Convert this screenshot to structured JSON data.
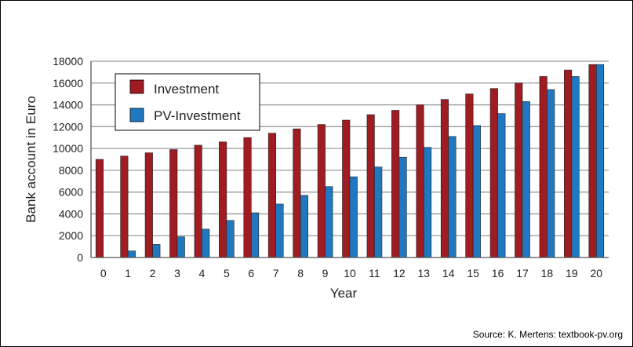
{
  "colors": {
    "investment": "#9e1c22",
    "pv_investment": "#1f78c0",
    "grid": "#9a9a9a",
    "axis": "#555555"
  },
  "source_note": "Source: K. Mertens: textbook-pv.org",
  "chart_data": {
    "type": "bar",
    "xlabel": "Year",
    "ylabel": "Bank account in Euro",
    "ylim": [
      0,
      18000
    ],
    "yticks": [
      0,
      2000,
      4000,
      6000,
      8000,
      10000,
      12000,
      14000,
      16000,
      18000
    ],
    "grid": true,
    "legend_position": "top-left",
    "categories": [
      "0",
      "1",
      "2",
      "3",
      "4",
      "5",
      "6",
      "7",
      "8",
      "9",
      "10",
      "11",
      "12",
      "13",
      "14",
      "15",
      "16",
      "17",
      "18",
      "19",
      "20"
    ],
    "series": [
      {
        "name": "Investment",
        "values": [
          9000,
          9300,
          9600,
          9900,
          10300,
          10600,
          11000,
          11400,
          11800,
          12200,
          12600,
          13100,
          13500,
          14000,
          14500,
          15000,
          15500,
          16000,
          16600,
          17200,
          17700
        ]
      },
      {
        "name": "PV-Investment",
        "values": [
          0,
          600,
          1200,
          1900,
          2600,
          3400,
          4100,
          4900,
          5700,
          6500,
          7400,
          8300,
          9200,
          10100,
          11100,
          12100,
          13200,
          14300,
          15400,
          16600,
          17700
        ]
      }
    ]
  }
}
